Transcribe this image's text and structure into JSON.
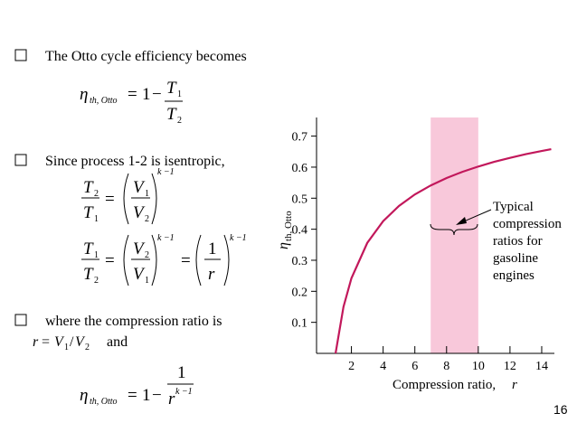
{
  "slide": {
    "bullets": [
      "The Otto cycle efficiency becomes",
      "Since process 1-2 is isentropic,",
      "where the compression ratio is"
    ],
    "sym": {
      "eta": "η",
      "sub": "th, Otto",
      "eq": "=",
      "one": "1",
      "two": "2",
      "minus": "−",
      "T": "T",
      "V": "V",
      "r": "r",
      "exp": "k −1",
      "slash": "/",
      "and": "and"
    },
    "page_number": "16"
  },
  "chart_data": {
    "type": "line",
    "x_label": "Compression ratio,",
    "x_label_var": "r",
    "y_label": {
      "symbol": "η",
      "sub": "th, Otto"
    },
    "x": [
      1,
      1.5,
      2,
      3,
      4,
      5,
      6,
      7,
      8,
      9,
      10,
      11,
      12,
      13,
      14,
      14.6
    ],
    "values": [
      0,
      0.15,
      0.242,
      0.356,
      0.426,
      0.475,
      0.512,
      0.541,
      0.565,
      0.585,
      0.602,
      0.617,
      0.63,
      0.642,
      0.652,
      0.658
    ],
    "color": "#c2185b",
    "shaded_range": [
      7,
      10
    ],
    "shade_color": "#f8c8da",
    "annotation": [
      "Typical",
      "compression",
      "ratios for",
      "gasoline",
      "engines"
    ],
    "xlim": [
      -0.2,
      14.8
    ],
    "xticks": [
      2,
      4,
      6,
      8,
      10,
      12,
      14
    ],
    "ylim": [
      0,
      0.76
    ],
    "yticks": [
      0.1,
      0.2,
      0.3,
      0.4,
      0.5,
      0.6,
      0.7
    ]
  }
}
